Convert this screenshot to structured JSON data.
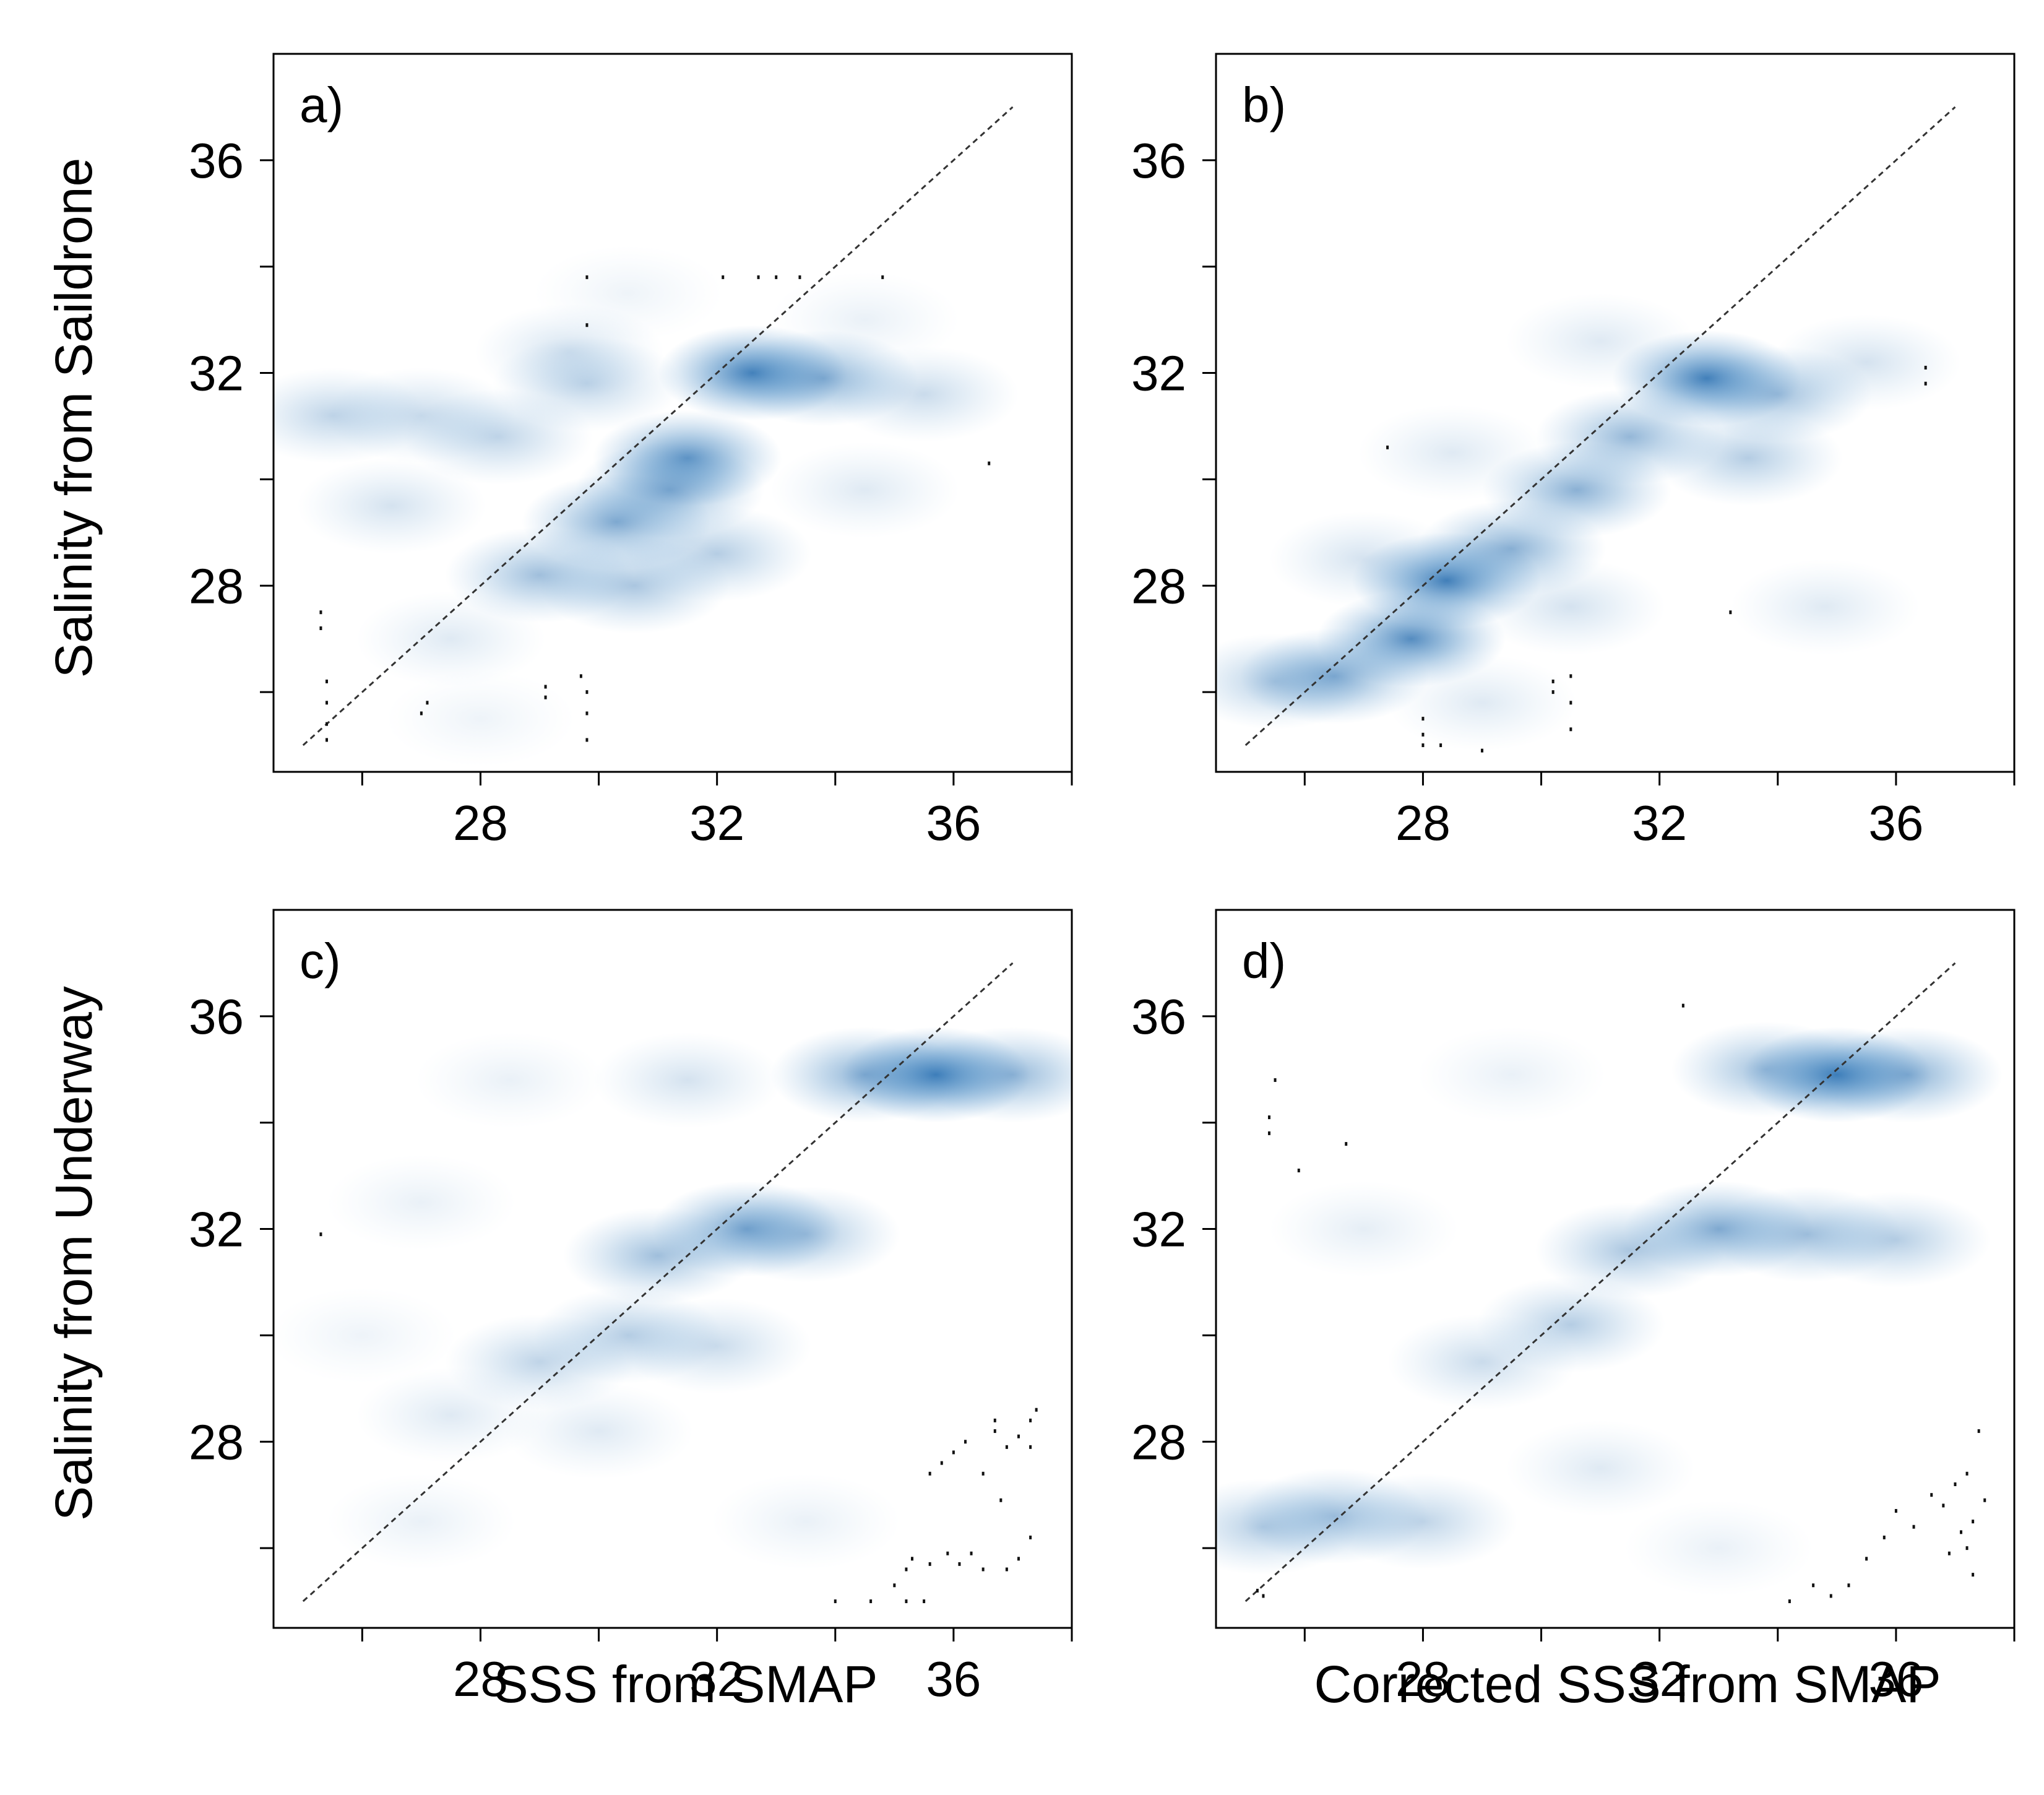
{
  "figure": {
    "y_titles": {
      "top": "Salinity from Saildrone",
      "bottom": "Salinity from Underway"
    },
    "x_titles": {
      "c": "SSS from SMAP",
      "d": "Corrected SSS from SMAP"
    },
    "density_color": "#2a6fb0"
  },
  "chart_data": [
    {
      "type": "heatmap",
      "panel": "a)",
      "xlabel": "",
      "ylabel": "Salinity from Saildrone",
      "xlim": [
        24.5,
        38
      ],
      "ylim": [
        24.5,
        38
      ],
      "x_ticks": [
        26,
        28,
        30,
        32,
        34,
        36,
        38
      ],
      "x_tick_labels": [
        "28",
        "32",
        "36"
      ],
      "y_ticks": [
        26,
        28,
        30,
        32,
        34,
        36
      ],
      "y_tick_labels": [
        "28",
        "32",
        "36"
      ],
      "reference_line": {
        "type": "1:1",
        "from": [
          25,
          25
        ],
        "to": [
          37,
          37
        ]
      },
      "density": [
        {
          "x": 32.6,
          "y": 32.0,
          "w": 0.9
        },
        {
          "x": 31.5,
          "y": 30.4,
          "w": 0.75
        },
        {
          "x": 30.3,
          "y": 29.2,
          "w": 0.6
        },
        {
          "x": 31.2,
          "y": 29.8,
          "w": 0.55
        },
        {
          "x": 33.8,
          "y": 31.9,
          "w": 0.55
        },
        {
          "x": 29.0,
          "y": 28.2,
          "w": 0.45
        },
        {
          "x": 30.6,
          "y": 28.0,
          "w": 0.4
        },
        {
          "x": 28.3,
          "y": 30.8,
          "w": 0.3
        },
        {
          "x": 29.8,
          "y": 31.8,
          "w": 0.3
        },
        {
          "x": 27.0,
          "y": 31.2,
          "w": 0.25
        },
        {
          "x": 25.5,
          "y": 31.2,
          "w": 0.3
        },
        {
          "x": 26.5,
          "y": 29.5,
          "w": 0.2
        },
        {
          "x": 35.5,
          "y": 31.6,
          "w": 0.25
        },
        {
          "x": 29.5,
          "y": 32.4,
          "w": 0.2
        },
        {
          "x": 32.0,
          "y": 28.6,
          "w": 0.35
        },
        {
          "x": 27.5,
          "y": 27.0,
          "w": 0.15
        },
        {
          "x": 28.0,
          "y": 25.5,
          "w": 0.08
        },
        {
          "x": 30.5,
          "y": 33.5,
          "w": 0.08
        },
        {
          "x": 34.5,
          "y": 33.0,
          "w": 0.1
        },
        {
          "x": 34.5,
          "y": 29.8,
          "w": 0.15
        }
      ],
      "outliers": [
        {
          "x": 25.3,
          "y": 27.5
        },
        {
          "x": 25.3,
          "y": 27.2
        },
        {
          "x": 25.4,
          "y": 26.2
        },
        {
          "x": 25.4,
          "y": 25.8
        },
        {
          "x": 25.4,
          "y": 25.4
        },
        {
          "x": 25.4,
          "y": 25.1
        },
        {
          "x": 27.1,
          "y": 25.8
        },
        {
          "x": 27.0,
          "y": 25.6
        },
        {
          "x": 29.1,
          "y": 26.1
        },
        {
          "x": 29.1,
          "y": 25.9
        },
        {
          "x": 29.7,
          "y": 26.3
        },
        {
          "x": 29.8,
          "y": 26.0
        },
        {
          "x": 29.8,
          "y": 25.6
        },
        {
          "x": 29.8,
          "y": 25.1
        },
        {
          "x": 29.8,
          "y": 33.8
        },
        {
          "x": 29.8,
          "y": 32.9
        },
        {
          "x": 32.1,
          "y": 33.8
        },
        {
          "x": 32.7,
          "y": 33.8
        },
        {
          "x": 33.0,
          "y": 33.8
        },
        {
          "x": 33.4,
          "y": 33.8
        },
        {
          "x": 34.8,
          "y": 33.8
        },
        {
          "x": 36.6,
          "y": 30.3
        }
      ]
    },
    {
      "type": "heatmap",
      "panel": "b)",
      "xlabel": "",
      "ylabel": "",
      "xlim": [
        24.5,
        38
      ],
      "ylim": [
        24.5,
        38
      ],
      "x_ticks": [
        26,
        28,
        30,
        32,
        34,
        36,
        38
      ],
      "x_tick_labels": [
        "28",
        "32",
        "36"
      ],
      "y_ticks": [
        26,
        28,
        30,
        32,
        34,
        36
      ],
      "y_tick_labels": [
        "28",
        "32",
        "36"
      ],
      "reference_line": {
        "type": "1:1",
        "from": [
          25,
          25
        ],
        "to": [
          37,
          37
        ]
      },
      "density": [
        {
          "x": 28.4,
          "y": 28.1,
          "w": 0.9
        },
        {
          "x": 27.8,
          "y": 27.0,
          "w": 0.8
        },
        {
          "x": 32.8,
          "y": 31.9,
          "w": 0.9
        },
        {
          "x": 29.5,
          "y": 28.7,
          "w": 0.55
        },
        {
          "x": 30.6,
          "y": 29.8,
          "w": 0.55
        },
        {
          "x": 31.5,
          "y": 30.8,
          "w": 0.5
        },
        {
          "x": 26.5,
          "y": 26.3,
          "w": 0.6
        },
        {
          "x": 25.5,
          "y": 26.2,
          "w": 0.35
        },
        {
          "x": 34.0,
          "y": 31.6,
          "w": 0.45
        },
        {
          "x": 33.5,
          "y": 30.4,
          "w": 0.35
        },
        {
          "x": 27.0,
          "y": 28.5,
          "w": 0.2
        },
        {
          "x": 28.5,
          "y": 30.5,
          "w": 0.15
        },
        {
          "x": 35.5,
          "y": 32.2,
          "w": 0.2
        },
        {
          "x": 31.0,
          "y": 32.6,
          "w": 0.15
        },
        {
          "x": 34.8,
          "y": 27.6,
          "w": 0.15
        },
        {
          "x": 30.5,
          "y": 27.6,
          "w": 0.2
        },
        {
          "x": 29.0,
          "y": 25.8,
          "w": 0.15
        }
      ],
      "outliers": [
        {
          "x": 27.4,
          "y": 30.6
        },
        {
          "x": 33.2,
          "y": 27.5
        },
        {
          "x": 36.5,
          "y": 32.1
        },
        {
          "x": 36.5,
          "y": 31.8
        },
        {
          "x": 28.0,
          "y": 25.5
        },
        {
          "x": 28.0,
          "y": 25.2
        },
        {
          "x": 28.0,
          "y": 25.0
        },
        {
          "x": 28.3,
          "y": 25.0
        },
        {
          "x": 29.0,
          "y": 24.9
        },
        {
          "x": 30.2,
          "y": 26.2
        },
        {
          "x": 30.2,
          "y": 26.0
        },
        {
          "x": 30.5,
          "y": 26.3
        },
        {
          "x": 30.5,
          "y": 25.8
        },
        {
          "x": 30.5,
          "y": 25.3
        }
      ]
    },
    {
      "type": "heatmap",
      "panel": "c)",
      "xlabel": "SSS from SMAP",
      "ylabel": "Salinity from Underway",
      "xlim": [
        24.5,
        38
      ],
      "ylim": [
        24.5,
        38
      ],
      "x_ticks": [
        26,
        28,
        30,
        32,
        34,
        36,
        38
      ],
      "x_tick_labels": [
        "28",
        "32",
        "36"
      ],
      "y_ticks": [
        26,
        28,
        30,
        32,
        34,
        36
      ],
      "y_tick_labels": [
        "28",
        "32",
        "36"
      ],
      "reference_line": {
        "type": "1:1",
        "from": [
          25,
          25
        ],
        "to": [
          37,
          37
        ]
      },
      "density": [
        {
          "x": 35.7,
          "y": 34.9,
          "w": 0.95
        },
        {
          "x": 34.5,
          "y": 34.9,
          "w": 0.55
        },
        {
          "x": 37.0,
          "y": 34.9,
          "w": 0.5
        },
        {
          "x": 32.5,
          "y": 32.0,
          "w": 0.65
        },
        {
          "x": 31.0,
          "y": 31.5,
          "w": 0.45
        },
        {
          "x": 33.5,
          "y": 31.9,
          "w": 0.4
        },
        {
          "x": 30.5,
          "y": 30.0,
          "w": 0.35
        },
        {
          "x": 29.0,
          "y": 29.5,
          "w": 0.3
        },
        {
          "x": 32.0,
          "y": 29.8,
          "w": 0.25
        },
        {
          "x": 27.5,
          "y": 28.5,
          "w": 0.15
        },
        {
          "x": 30.0,
          "y": 28.2,
          "w": 0.15
        },
        {
          "x": 31.5,
          "y": 34.8,
          "w": 0.2
        },
        {
          "x": 28.5,
          "y": 34.8,
          "w": 0.1
        },
        {
          "x": 27.0,
          "y": 26.5,
          "w": 0.1
        },
        {
          "x": 33.5,
          "y": 26.5,
          "w": 0.1
        },
        {
          "x": 27.0,
          "y": 32.5,
          "w": 0.1
        },
        {
          "x": 26.0,
          "y": 30.0,
          "w": 0.08
        }
      ],
      "outliers": [
        {
          "x": 25.3,
          "y": 31.9
        },
        {
          "x": 34.0,
          "y": 25.0
        },
        {
          "x": 34.6,
          "y": 25.0
        },
        {
          "x": 35.0,
          "y": 25.3
        },
        {
          "x": 35.2,
          "y": 25.0
        },
        {
          "x": 35.5,
          "y": 25.0
        },
        {
          "x": 35.2,
          "y": 25.6
        },
        {
          "x": 35.3,
          "y": 25.8
        },
        {
          "x": 35.6,
          "y": 25.7
        },
        {
          "x": 35.9,
          "y": 25.9
        },
        {
          "x": 36.1,
          "y": 25.7
        },
        {
          "x": 36.3,
          "y": 25.9
        },
        {
          "x": 36.5,
          "y": 25.6
        },
        {
          "x": 36.9,
          "y": 25.6
        },
        {
          "x": 37.1,
          "y": 25.8
        },
        {
          "x": 37.3,
          "y": 26.2
        },
        {
          "x": 35.6,
          "y": 27.4
        },
        {
          "x": 35.8,
          "y": 27.6
        },
        {
          "x": 36.0,
          "y": 27.8
        },
        {
          "x": 36.2,
          "y": 28.0
        },
        {
          "x": 36.5,
          "y": 27.4
        },
        {
          "x": 36.7,
          "y": 28.2
        },
        {
          "x": 36.7,
          "y": 28.4
        },
        {
          "x": 36.9,
          "y": 27.9
        },
        {
          "x": 37.1,
          "y": 28.1
        },
        {
          "x": 37.3,
          "y": 28.4
        },
        {
          "x": 37.4,
          "y": 28.6
        },
        {
          "x": 37.3,
          "y": 27.9
        },
        {
          "x": 36.8,
          "y": 26.9
        }
      ]
    },
    {
      "type": "heatmap",
      "panel": "d)",
      "xlabel": "Corrected SSS from SMAP",
      "ylabel": "",
      "xlim": [
        24.5,
        38
      ],
      "ylim": [
        24.5,
        38
      ],
      "x_ticks": [
        26,
        28,
        30,
        32,
        34,
        36,
        38
      ],
      "x_tick_labels": [
        "28",
        "32",
        "36"
      ],
      "y_ticks": [
        26,
        28,
        30,
        32,
        34,
        36
      ],
      "y_tick_labels": [
        "28",
        "32",
        "36"
      ],
      "reference_line": {
        "type": "1:1",
        "from": [
          25,
          25
        ],
        "to": [
          37,
          37
        ]
      },
      "density": [
        {
          "x": 35.0,
          "y": 34.9,
          "w": 0.95
        },
        {
          "x": 36.2,
          "y": 34.9,
          "w": 0.55
        },
        {
          "x": 33.8,
          "y": 35.0,
          "w": 0.45
        },
        {
          "x": 33.0,
          "y": 32.0,
          "w": 0.6
        },
        {
          "x": 34.5,
          "y": 31.9,
          "w": 0.45
        },
        {
          "x": 31.5,
          "y": 31.6,
          "w": 0.4
        },
        {
          "x": 36.0,
          "y": 31.8,
          "w": 0.35
        },
        {
          "x": 30.5,
          "y": 30.2,
          "w": 0.35
        },
        {
          "x": 29.0,
          "y": 29.5,
          "w": 0.25
        },
        {
          "x": 26.5,
          "y": 26.6,
          "w": 0.45
        },
        {
          "x": 28.0,
          "y": 26.5,
          "w": 0.3
        },
        {
          "x": 25.3,
          "y": 26.4,
          "w": 0.35
        },
        {
          "x": 31.0,
          "y": 27.5,
          "w": 0.15
        },
        {
          "x": 29.5,
          "y": 34.9,
          "w": 0.1
        },
        {
          "x": 27.0,
          "y": 32.0,
          "w": 0.12
        },
        {
          "x": 33.0,
          "y": 26.0,
          "w": 0.1
        }
      ],
      "outliers": [
        {
          "x": 25.2,
          "y": 25.2
        },
        {
          "x": 25.3,
          "y": 25.1
        },
        {
          "x": 25.4,
          "y": 34.1
        },
        {
          "x": 25.5,
          "y": 34.8
        },
        {
          "x": 25.4,
          "y": 33.8
        },
        {
          "x": 25.9,
          "y": 33.1
        },
        {
          "x": 26.7,
          "y": 33.6
        },
        {
          "x": 32.4,
          "y": 36.2
        },
        {
          "x": 34.2,
          "y": 25.0
        },
        {
          "x": 34.6,
          "y": 25.3
        },
        {
          "x": 34.9,
          "y": 25.1
        },
        {
          "x": 35.2,
          "y": 25.3
        },
        {
          "x": 35.5,
          "y": 25.8
        },
        {
          "x": 35.8,
          "y": 26.2
        },
        {
          "x": 36.0,
          "y": 26.7
        },
        {
          "x": 36.3,
          "y": 26.4
        },
        {
          "x": 36.6,
          "y": 27.0
        },
        {
          "x": 36.8,
          "y": 26.8
        },
        {
          "x": 37.0,
          "y": 27.2
        },
        {
          "x": 37.2,
          "y": 27.4
        },
        {
          "x": 37.2,
          "y": 26.0
        },
        {
          "x": 37.3,
          "y": 26.5
        },
        {
          "x": 37.3,
          "y": 25.5
        },
        {
          "x": 37.4,
          "y": 28.2
        },
        {
          "x": 37.5,
          "y": 26.9
        },
        {
          "x": 36.9,
          "y": 25.9
        },
        {
          "x": 37.1,
          "y": 26.3
        }
      ]
    }
  ]
}
